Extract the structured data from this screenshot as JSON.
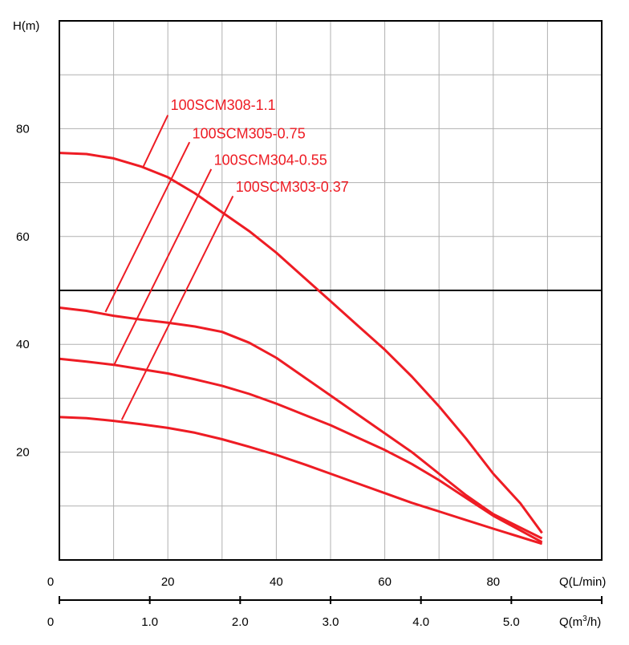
{
  "chart_data": {
    "type": "line",
    "y_axis_label": "H(m)",
    "x_axis_label": "Q(L/min)",
    "x2_axis_label_prefix": "Q(m",
    "x2_axis_label_sup": "3",
    "x2_axis_label_suffix": "/h)",
    "xlim": [
      0,
      100
    ],
    "ylim": [
      0,
      100
    ],
    "y_ticks": [
      20,
      40,
      60,
      80
    ],
    "y_tick_labels": [
      "20",
      "40",
      "60",
      "80"
    ],
    "x_ticks": [
      0,
      20,
      40,
      60,
      80
    ],
    "x_tick_labels": [
      "0",
      "20",
      "40",
      "60",
      "80"
    ],
    "x2_ticks": [
      0,
      1.0,
      2.0,
      3.0,
      4.0,
      5.0
    ],
    "x2_tick_labels": [
      "0",
      "1.0",
      "2.0",
      "3.0",
      "4.0",
      "5.0"
    ],
    "x2_to_x_factor": 16.667,
    "grid": true,
    "reference_line_y": 50,
    "colors": {
      "series": "#ee1c24",
      "axis": "#000000",
      "grid": "#b0b0b0",
      "text": "#000000"
    },
    "series": [
      {
        "name": "100SCM308-1.1",
        "points": [
          [
            0,
            75.5
          ],
          [
            5,
            75.3
          ],
          [
            10,
            74.5
          ],
          [
            15,
            73.0
          ],
          [
            20,
            71.0
          ],
          [
            25,
            68.0
          ],
          [
            30,
            64.5
          ],
          [
            35,
            61.0
          ],
          [
            40,
            57.0
          ],
          [
            45,
            52.5
          ],
          [
            50,
            48.0
          ],
          [
            55,
            43.5
          ],
          [
            60,
            39.0
          ],
          [
            65,
            34.0
          ],
          [
            70,
            28.5
          ],
          [
            75,
            22.5
          ],
          [
            80,
            16.0
          ],
          [
            85,
            10.5
          ],
          [
            89,
            5.0
          ]
        ],
        "label_anchor": [
          15.5,
          73.0
        ],
        "label_leader_top": [
          20,
          82.5
        ],
        "label_position": [
          20.5,
          83.5
        ]
      },
      {
        "name": "100SCM305-0.75",
        "points": [
          [
            0,
            46.8
          ],
          [
            5,
            46.2
          ],
          [
            10,
            45.3
          ],
          [
            15,
            44.6
          ],
          [
            20,
            44.0
          ],
          [
            25,
            43.3
          ],
          [
            30,
            42.3
          ],
          [
            35,
            40.3
          ],
          [
            40,
            37.5
          ],
          [
            45,
            34.0
          ],
          [
            50,
            30.5
          ],
          [
            55,
            27.0
          ],
          [
            60,
            23.5
          ],
          [
            65,
            20.0
          ],
          [
            70,
            16.0
          ],
          [
            75,
            12.0
          ],
          [
            80,
            8.5
          ],
          [
            89,
            4.0
          ]
        ],
        "label_anchor": [
          8.5,
          46.0
        ],
        "label_leader_top": [
          24,
          77.5
        ],
        "label_position": [
          24.5,
          78.2
        ]
      },
      {
        "name": "100SCM304-0.55",
        "points": [
          [
            0,
            37.3
          ],
          [
            5,
            36.8
          ],
          [
            10,
            36.2
          ],
          [
            15,
            35.4
          ],
          [
            20,
            34.6
          ],
          [
            25,
            33.5
          ],
          [
            30,
            32.3
          ],
          [
            35,
            30.8
          ],
          [
            40,
            29.0
          ],
          [
            45,
            27.0
          ],
          [
            50,
            25.0
          ],
          [
            55,
            22.7
          ],
          [
            60,
            20.4
          ],
          [
            65,
            17.8
          ],
          [
            70,
            14.8
          ],
          [
            75,
            11.5
          ],
          [
            80,
            8.2
          ],
          [
            89,
            3.3
          ]
        ],
        "label_anchor": [
          10,
          36.0
        ],
        "label_leader_top": [
          28,
          72.5
        ],
        "label_position": [
          28.5,
          73.3
        ]
      },
      {
        "name": "100SCM303-0.37",
        "points": [
          [
            0,
            26.5
          ],
          [
            5,
            26.3
          ],
          [
            10,
            25.8
          ],
          [
            15,
            25.2
          ],
          [
            20,
            24.5
          ],
          [
            25,
            23.6
          ],
          [
            30,
            22.4
          ],
          [
            35,
            21.0
          ],
          [
            40,
            19.5
          ],
          [
            45,
            17.8
          ],
          [
            50,
            16.0
          ],
          [
            55,
            14.2
          ],
          [
            60,
            12.4
          ],
          [
            65,
            10.6
          ],
          [
            70,
            9.0
          ],
          [
            75,
            7.4
          ],
          [
            80,
            5.8
          ],
          [
            89,
            3.0
          ]
        ],
        "label_anchor": [
          11.5,
          26.0
        ],
        "label_leader_top": [
          32,
          67.5
        ],
        "label_position": [
          32.5,
          68.3
        ]
      }
    ]
  }
}
